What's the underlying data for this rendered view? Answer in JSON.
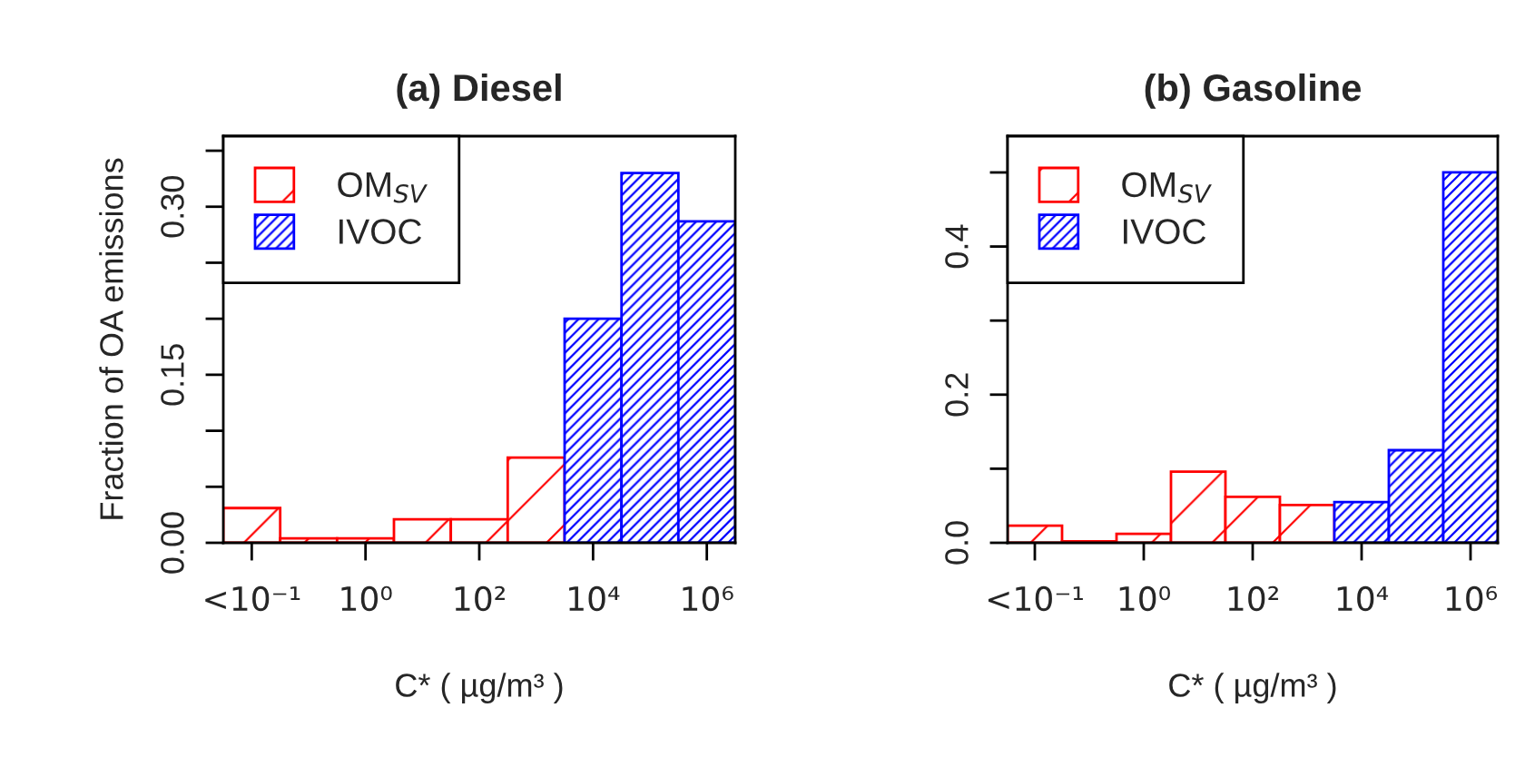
{
  "chart_data": [
    {
      "type": "bar",
      "title": "(a) Diesel",
      "xlabel": "C* ( µg/m³ )",
      "ylabel": "Fraction of OA emissions",
      "legend": "top left",
      "categories": [
        "<10⁻¹",
        null,
        "10⁰",
        null,
        "10²",
        null,
        "10⁴",
        null,
        "10⁶"
      ],
      "series": [
        {
          "name": "OM$_{SV}$",
          "color": "#ff0000",
          "values": [
            0.031,
            0.004,
            0.004,
            0.021,
            0.021,
            0.076,
            null,
            null,
            null
          ]
        },
        {
          "name": "IVOC",
          "color": "#0000ff",
          "values": [
            null,
            null,
            null,
            null,
            null,
            null,
            0.2,
            0.33,
            0.287
          ]
        }
      ],
      "ylim": [
        0,
        0.363
      ],
      "yticks": [
        {
          "value": 0,
          "label": "0.00"
        },
        {
          "value": 0.05,
          "label": null
        },
        {
          "value": 0.1,
          "label": null
        },
        {
          "value": 0.15,
          "label": "0.15"
        },
        {
          "value": 0.2,
          "label": null
        },
        {
          "value": 0.25,
          "label": null
        },
        {
          "value": 0.3,
          "label": "0.30"
        },
        {
          "value": 0.35,
          "label": null
        }
      ]
    },
    {
      "type": "bar",
      "title": "(b) Gasoline",
      "xlabel": "C* ( µg/m³ )",
      "legend": "top left",
      "categories": [
        "<10⁻¹",
        null,
        "10⁰",
        null,
        "10²",
        null,
        "10⁴",
        null,
        "10⁶"
      ],
      "series": [
        {
          "name": "OM$_{SV}$",
          "color": "#ff0000",
          "values": [
            0.023,
            0.002,
            0.012,
            0.096,
            0.062,
            0.051,
            null,
            null,
            null
          ]
        },
        {
          "name": "IVOC",
          "color": "#0000ff",
          "values": [
            null,
            null,
            null,
            null,
            null,
            null,
            0.055,
            0.125,
            0.5
          ]
        }
      ],
      "ylim": [
        0,
        0.549
      ],
      "yticks": [
        {
          "value": 0,
          "label": "0.0"
        },
        {
          "value": 0.1,
          "label": null
        },
        0.2,
        {
          "value": 0.3,
          "label": null
        },
        0.4,
        {
          "value": 0.5,
          "label": null
        }
      ]
    }
  ]
}
